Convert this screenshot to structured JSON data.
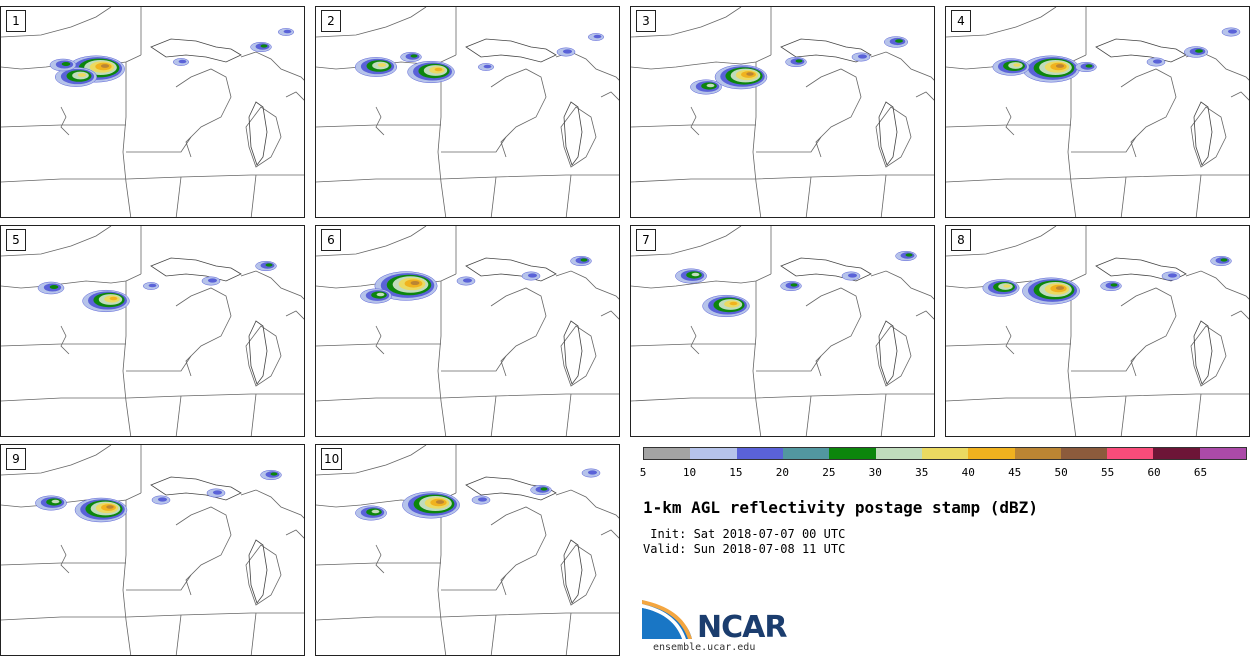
{
  "panels": [
    {
      "label": "1"
    },
    {
      "label": "2"
    },
    {
      "label": "3"
    },
    {
      "label": "4"
    },
    {
      "label": "5"
    },
    {
      "label": "6"
    },
    {
      "label": "7"
    },
    {
      "label": "8"
    },
    {
      "label": "9"
    },
    {
      "label": "10"
    }
  ],
  "legend": {
    "colors": [
      "#a4a4a4",
      "#b6c3ea",
      "#5a62d8",
      "#5297a0",
      "#0c860c",
      "#c0dcbc",
      "#ebda61",
      "#f0b21f",
      "#bb8533",
      "#8c5b3c",
      "#f94c7a",
      "#6d1537",
      "#ab4aa8"
    ],
    "ticks": [
      "5",
      "10",
      "15",
      "20",
      "25",
      "30",
      "35",
      "40",
      "45",
      "50",
      "55",
      "60",
      "65"
    ]
  },
  "title": "1-km AGL reflectivity postage stamp (dBZ)",
  "init": " Init: Sat 2018-07-07 00 UTC",
  "valid": "Valid: Sun 2018-07-08 11 UTC",
  "logo": {
    "text": "NCAR",
    "site": "ensemble.ucar.edu"
  }
}
